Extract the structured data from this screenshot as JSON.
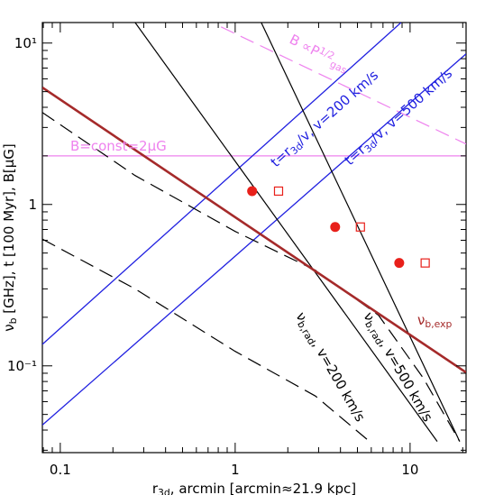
{
  "chart_data": {
    "type": "line",
    "log_x": true,
    "log_y": true,
    "xlim": [
      0.079,
      20.9
    ],
    "ylim": [
      0.029,
      13.4
    ],
    "xticks": [
      0.1,
      1,
      10
    ],
    "xminor_ticks": [
      0.08,
      0.09,
      0.2,
      0.3,
      0.4,
      0.5,
      0.6,
      0.7,
      0.8,
      0.9,
      2,
      3,
      4,
      5,
      6,
      7,
      8,
      9,
      20
    ],
    "yticks": [
      {
        "value": 10,
        "label": "10¹"
      },
      1,
      {
        "value": 0.1,
        "label": "10⁻¹"
      }
    ],
    "yminor_ticks": [
      0.03,
      0.04,
      0.05,
      0.06,
      0.07,
      0.08,
      0.09,
      0.2,
      0.3,
      0.4,
      0.5,
      0.6,
      0.7,
      0.8,
      0.9,
      2,
      3,
      4,
      5,
      6,
      7,
      8,
      9
    ],
    "x_label": [
      {
        "text": "r"
      },
      {
        "text": "3d",
        "sub": true
      },
      {
        "text": ", arcmin [arcmin≈21.9 kpc]"
      }
    ],
    "y_label": [
      {
        "text": "ν"
      },
      {
        "text": "b",
        "sub": true
      },
      {
        "text": " [GHz], t [100 Myr], B[μG]"
      }
    ],
    "series": [
      {
        "type": "line",
        "color": "#ee82ee",
        "width": 1.2,
        "dash": false,
        "x": [
          0.079,
          20.9
        ],
        "y": [
          2.0,
          2.0
        ]
      },
      {
        "type": "line",
        "color": "#ee82ee",
        "width": 1.2,
        "dash": true,
        "x": [
          0.83,
          20.9
        ],
        "y": [
          12.6,
          2.37
        ]
      },
      {
        "type": "line",
        "color": "#2020e0",
        "width": 1.3,
        "dash": false,
        "x": [
          0.079,
          8.88
        ],
        "y": [
          0.136,
          13.4
        ]
      },
      {
        "type": "line",
        "color": "#2020e0",
        "width": 1.3,
        "dash": false,
        "x": [
          0.079,
          20.9
        ],
        "y": [
          0.043,
          8.57
        ]
      },
      {
        "type": "line",
        "color": "#000000",
        "width": 1.2,
        "dash": false,
        "x": [
          0.268,
          14.3
        ],
        "y": [
          13.4,
          0.034
        ]
      },
      {
        "type": "line",
        "color": "#000000",
        "width": 1.2,
        "dash": false,
        "x": [
          1.41,
          19.2
        ],
        "y": [
          13.4,
          0.034
        ]
      },
      {
        "type": "line",
        "color": "#000000",
        "width": 1.2,
        "dash": true,
        "x": [
          0.079,
          0.268,
          1,
          2.88,
          6.6,
          11.9,
          19.2
        ],
        "y": [
          3.71,
          1.51,
          0.68,
          0.391,
          0.206,
          0.084,
          0.034
        ]
      },
      {
        "type": "line",
        "color": "#000000",
        "width": 1.2,
        "dash": true,
        "x": [
          0.079,
          0.268,
          1,
          2.88,
          5.86
        ],
        "y": [
          0.61,
          0.3,
          0.123,
          0.065,
          0.034
        ]
      },
      {
        "type": "line",
        "color": "#a52a2a",
        "width": 2.6,
        "dash": false,
        "x": [
          0.079,
          20.9
        ],
        "y": [
          5.3,
          0.091
        ]
      },
      {
        "type": "scatter",
        "marker": "circle",
        "color": "#e8201a",
        "x": [
          1.25,
          3.73,
          8.67
        ],
        "y": [
          1.21,
          0.725,
          0.434
        ]
      },
      {
        "type": "scatter",
        "marker": "square",
        "color": "#e8201a",
        "x": [
          1.77,
          5.2,
          12.2
        ],
        "y": [
          1.21,
          0.725,
          0.434
        ]
      }
    ],
    "annotations": [
      {
        "color": "#ee82ee",
        "parts": [
          {
            "text": "B=const=2μG"
          }
        ]
      },
      {
        "color": "#ee82ee",
        "parts": [
          {
            "text": "B ∝P"
          },
          {
            "text": "1/2",
            "sup": true
          },
          {
            "text": "gas",
            "sub": true
          }
        ]
      },
      {
        "color": "#2020e0",
        "parts": [
          {
            "text": "t=r"
          },
          {
            "text": "3d",
            "sub": true
          },
          {
            "text": "/v, v=200 km/s"
          }
        ]
      },
      {
        "color": "#2020e0",
        "parts": [
          {
            "text": "t=r"
          },
          {
            "text": "3d",
            "sub": true
          },
          {
            "text": "/v, v=500 km/s"
          }
        ]
      },
      {
        "color": "#a52a2a",
        "parts": [
          {
            "text": "ν"
          },
          {
            "text": "b,exp",
            "sub": true
          }
        ]
      },
      {
        "color": "#000000",
        "parts": [
          {
            "text": "ν"
          },
          {
            "text": "b,rad",
            "sub": true
          },
          {
            "text": ", v=200 km/s"
          }
        ]
      },
      {
        "color": "#000000",
        "parts": [
          {
            "text": "ν"
          },
          {
            "text": "b,rad",
            "sub": true
          },
          {
            "text": ", v=500 km/s"
          }
        ]
      }
    ]
  }
}
